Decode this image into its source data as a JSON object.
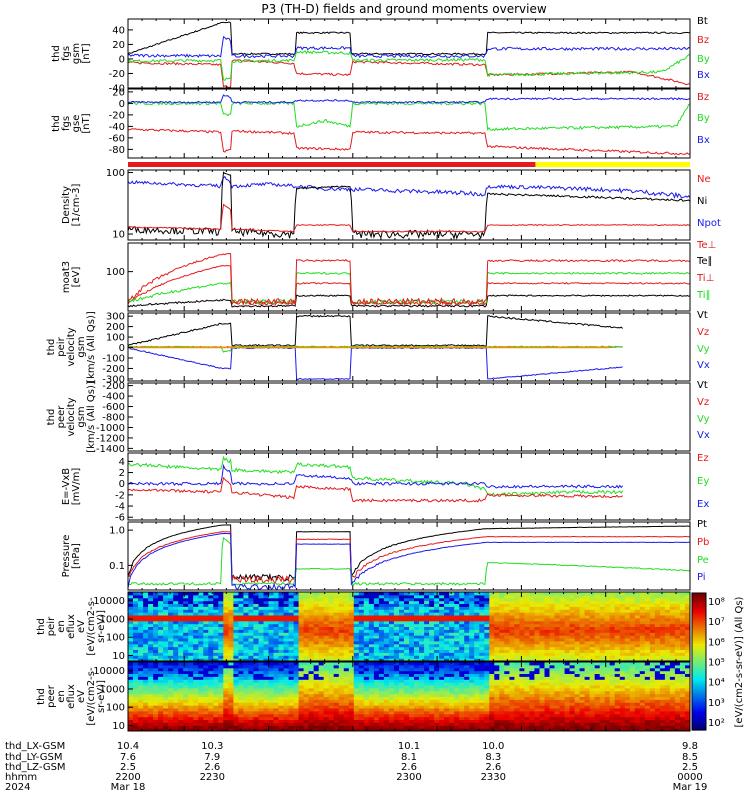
{
  "title": "P3 (TH-D) fields and ground moments overview",
  "colors": {
    "black": "#000000",
    "red": "#e41a1c",
    "green": "#22dd22",
    "blue": "#1a1aee",
    "yellow": "#ffff00"
  },
  "chart_data": [
    {
      "type": "line",
      "panel": "fgs_gsm",
      "ylabel": [
        "thd",
        "fgs",
        "gsm",
        "[nT]"
      ],
      "ylim": [
        -40,
        55
      ],
      "yticks": [
        40,
        20,
        0,
        -20,
        -40
      ],
      "legend": [
        {
          "name": "Bt",
          "color": "black"
        },
        {
          "name": "Bz",
          "color": "red"
        },
        {
          "name": "By",
          "color": "green"
        },
        {
          "name": "Bx",
          "color": "blue"
        }
      ]
    },
    {
      "type": "line",
      "panel": "fgs_gse",
      "ylabel": [
        "thd",
        "fgs",
        "gse",
        "[nT]"
      ],
      "ylim": [
        -95,
        25
      ],
      "yticks": [
        20,
        0,
        -20,
        -40,
        -60,
        -80
      ],
      "legend": [
        {
          "name": "Bz",
          "color": "red"
        },
        {
          "name": "By",
          "color": "green"
        },
        {
          "name": "Bx",
          "color": "blue"
        }
      ]
    },
    {
      "type": "bar",
      "panel": "mode_bar",
      "segments": [
        {
          "start": 2200,
          "end": 2345,
          "color": "red"
        },
        {
          "start": 2345,
          "end": 2400,
          "color": "yellow"
        }
      ]
    },
    {
      "type": "line",
      "panel": "density",
      "ylabel": [
        "Density",
        "[1/cm-3]"
      ],
      "yscale": "log",
      "ylim": [
        8,
        110
      ],
      "yticks": [
        "100",
        "10"
      ],
      "legend": [
        {
          "name": "Ne",
          "color": "red"
        },
        {
          "name": "Ni",
          "color": "black"
        },
        {
          "name": "Npot",
          "color": "blue"
        }
      ]
    },
    {
      "type": "line",
      "panel": "temperature",
      "ylabel": [
        "moat3",
        "[eV]"
      ],
      "yscale": "log",
      "ylim": [
        30,
        240
      ],
      "yticks": [
        "100"
      ],
      "legend": [
        {
          "name": "Te⊥",
          "color": "red"
        },
        {
          "name": "Te∥",
          "color": "black"
        },
        {
          "name": "Ti⊥",
          "color": "red"
        },
        {
          "name": "Ti∥",
          "color": "green"
        }
      ]
    },
    {
      "type": "line",
      "panel": "peir_velocity",
      "ylabel": [
        "thd",
        "peir",
        "velocity",
        "gsm",
        "[km/s (All Qs)]"
      ],
      "ylim": [
        -320,
        330
      ],
      "yticks": [
        300,
        200,
        100,
        0,
        -100,
        -200,
        -300
      ],
      "legend": [
        {
          "name": "Vt",
          "color": "black"
        },
        {
          "name": "Vz",
          "color": "red"
        },
        {
          "name": "Vy",
          "color": "green"
        },
        {
          "name": "Vx",
          "color": "blue"
        }
      ]
    },
    {
      "type": "line",
      "panel": "peer_velocity",
      "ylabel": [
        "thd",
        "peer",
        "velocity",
        "gsm",
        "[km/s (All Qs)]"
      ],
      "ylim": [
        -1450,
        -150
      ],
      "yticks": [
        -200,
        -400,
        -600,
        -800,
        -1000,
        -1200,
        -1400
      ],
      "legend": [
        {
          "name": "Vt",
          "color": "black"
        },
        {
          "name": "Vz",
          "color": "red"
        },
        {
          "name": "Vy",
          "color": "green"
        },
        {
          "name": "Vx",
          "color": "blue"
        }
      ]
    },
    {
      "type": "line",
      "panel": "efield",
      "ylabel": [
        "E=-VxB",
        "[mV/m]"
      ],
      "ylim": [
        -6.5,
        5.5
      ],
      "yticks": [
        4,
        2,
        0,
        -2,
        -4,
        -6
      ],
      "legend": [
        {
          "name": "Ez",
          "color": "red"
        },
        {
          "name": "Ey",
          "color": "green"
        },
        {
          "name": "Ex",
          "color": "blue"
        }
      ]
    },
    {
      "type": "line",
      "panel": "pressure",
      "ylabel": [
        "Pressure",
        "[nPa]"
      ],
      "yscale": "log",
      "ylim": [
        0.02,
        1.7
      ],
      "yticks": [
        "1.0",
        "0.1"
      ],
      "legend": [
        {
          "name": "Pt",
          "color": "black"
        },
        {
          "name": "Pb",
          "color": "red"
        },
        {
          "name": "Pe",
          "color": "green"
        },
        {
          "name": "Pi",
          "color": "blue"
        }
      ]
    },
    {
      "type": "heatmap",
      "panel": "peir_en_eflux",
      "ylabel": [
        "thd",
        "peir",
        "en",
        "eflux",
        "eV",
        "[eV/(cm2-s-",
        "sr-eV)]"
      ],
      "yscale": "log",
      "ylim": [
        5,
        30000
      ],
      "yticks": [
        "10000",
        "1000",
        "100",
        "10"
      ]
    },
    {
      "type": "heatmap",
      "panel": "peer_en_eflux",
      "ylabel": [
        "thd",
        "peer",
        "en",
        "eflux",
        "eV",
        "[eV/(cm2-s-",
        "sr-eV)]"
      ],
      "yscale": "log",
      "ylim": [
        5,
        30000
      ],
      "yticks": [
        "10000",
        "1000",
        "100",
        "10"
      ]
    },
    {
      "type": "colorbar",
      "panel": "colorbar",
      "label": "[eV/(cm2-s-sr-eV)] (All Qs)",
      "ticks": [
        "10⁸",
        "10⁷",
        "10⁶",
        "10⁵",
        "10⁴",
        "10³",
        "10²"
      ]
    }
  ],
  "x_axis": {
    "row_labels": [
      "thd_LX-GSM",
      "thd_LY-GSM",
      "thd_LZ-GSM",
      "hhmm",
      "2024"
    ],
    "ticks": [
      {
        "time": 2200,
        "lx": "10.4",
        "ly": "7.6",
        "lz": "2.5",
        "hhmm": "2200",
        "date": "Mar 18"
      },
      {
        "time": 2230,
        "lx": "10.3",
        "ly": "7.9",
        "lz": "2.6",
        "hhmm": "2230",
        "date": ""
      },
      {
        "time": 2300,
        "lx": "10.1",
        "ly": "8.1",
        "lz": "2.6",
        "hhmm": "2300",
        "date": ""
      },
      {
        "time": 2330,
        "lx": "10.0",
        "ly": "8.3",
        "lz": "2.6",
        "hhmm": "2330",
        "date": ""
      },
      {
        "time": 2400,
        "lx": "9.8",
        "ly": "8.5",
        "lz": "2.5",
        "hhmm": "0000",
        "date": "Mar 19"
      }
    ]
  }
}
